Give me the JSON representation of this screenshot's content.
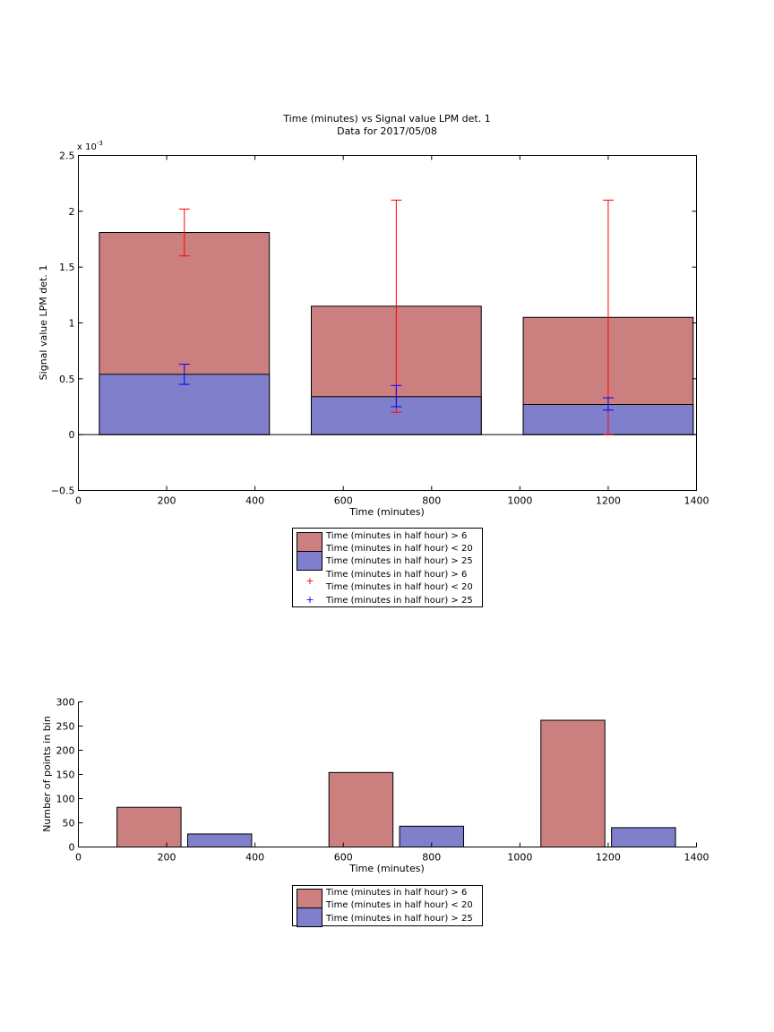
{
  "chart_data": [
    {
      "type": "bar",
      "title": "Time (minutes) vs Signal value LPM det. 1",
      "subtitle": "Data for 2017/05/08",
      "xlabel": "Time (minutes)",
      "ylabel": "Signal value LPM det. 1",
      "exponent_label": "x 10",
      "exponent_power": "-3",
      "xlim": [
        0,
        1400
      ],
      "ylim": [
        -0.5,
        2.5
      ],
      "y_scale_factor": 0.001,
      "xticks": [
        0,
        200,
        400,
        600,
        800,
        1000,
        1200,
        1400
      ],
      "xtick_labels": [
        "0",
        "200",
        "400",
        "600",
        "800",
        "1000",
        "1200",
        "1400"
      ],
      "yticks": [
        -0.5,
        0,
        0.5,
        1,
        1.5,
        2,
        2.5
      ],
      "ytick_labels": [
        "−0.5",
        "0",
        "0.5",
        "1",
        "1.5",
        "2",
        "2.5"
      ],
      "grid": false,
      "legend_position": "below",
      "bar_layout": "overlaid",
      "bar_width": 385,
      "x": [
        240,
        720,
        1200
      ],
      "series": [
        {
          "name": "Time (minutes in half hour) > 6",
          "name_line2": "Time (minutes in half hour) < 20",
          "color": "#cc7f7f",
          "values": [
            1.81,
            1.15,
            1.05
          ],
          "error_low": [
            1.6,
            0.2,
            0.0
          ],
          "error_high": [
            2.02,
            2.1,
            2.1
          ],
          "error_color": "#ff0000"
        },
        {
          "name": "Time (minutes in half hour) > 25",
          "color": "#7f7fcc",
          "values": [
            0.54,
            0.34,
            0.27
          ],
          "error_low": [
            0.45,
            0.25,
            0.22
          ],
          "error_high": [
            0.63,
            0.44,
            0.33
          ],
          "error_color": "#0000ff"
        }
      ],
      "legend": {
        "bar_entry_1_line1": "Time (minutes in half hour) > 6",
        "bar_entry_1_line2": "Time (minutes in half hour) < 20",
        "bar_entry_2": "Time (minutes in half hour) > 25",
        "err_entry_1_line1": "Time (minutes in half hour) > 6",
        "err_entry_1_line2": "Time (minutes in half hour) < 20",
        "err_entry_2": "Time (minutes in half hour) > 25"
      }
    },
    {
      "type": "bar",
      "xlabel": "Time (minutes)",
      "ylabel": "Number of points in bin",
      "xlim": [
        0,
        1400
      ],
      "ylim": [
        0,
        300
      ],
      "xticks": [
        0,
        200,
        400,
        600,
        800,
        1000,
        1200,
        1400
      ],
      "xtick_labels": [
        "0",
        "200",
        "400",
        "600",
        "800",
        "1000",
        "1200",
        "1400"
      ],
      "yticks": [
        0,
        50,
        100,
        150,
        200,
        250,
        300
      ],
      "ytick_labels": [
        "0",
        "50",
        "100",
        "150",
        "200",
        "250",
        "300"
      ],
      "grid": false,
      "legend_position": "below",
      "bar_layout": "grouped",
      "bar_width": 145,
      "series": [
        {
          "name": "Time (minutes in half hour) > 6",
          "name_line2": "Time (minutes in half hour) < 20",
          "color": "#cc7f7f",
          "x": [
            160,
            640,
            1120
          ],
          "values": [
            82,
            154,
            262
          ]
        },
        {
          "name": "Time (minutes in half hour) > 25",
          "color": "#7f7fcc",
          "x": [
            320,
            800,
            1280
          ],
          "values": [
            27,
            43,
            40
          ]
        }
      ],
      "legend": {
        "bar_entry_1_line1": "Time (minutes in half hour) > 6",
        "bar_entry_1_line2": "Time (minutes in half hour) < 20",
        "bar_entry_2": "Time (minutes in half hour) > 25"
      }
    }
  ]
}
